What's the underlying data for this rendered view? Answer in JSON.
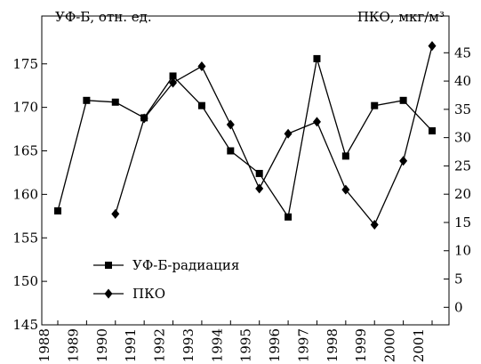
{
  "chart_data": {
    "type": "line",
    "y_label": "УФ-Б, отн. ед.",
    "y2_label": "ПКО, мкг/м³",
    "categories": [
      "1988",
      "1989",
      "1990",
      "1991",
      "1992",
      "1993",
      "1994",
      "1995",
      "1996",
      "1997",
      "1998",
      "1999",
      "2000",
      "2001"
    ],
    "series": [
      {
        "name": "УФ-Б-радиация",
        "color": "#000000",
        "marker": "square",
        "axis": "y",
        "values": [
          158.1,
          170.8,
          170.6,
          168.8,
          173.6,
          170.2,
          165,
          162.4,
          157.4,
          175.6,
          164.4,
          170.2,
          170.8,
          167.3
        ]
      },
      {
        "name": "ПКО",
        "color": "#000000",
        "marker": "diamond",
        "axis": "y2",
        "values": [
          null,
          null,
          16.5,
          33.4,
          39.7,
          42.6,
          32.3,
          21,
          30.7,
          32.8,
          20.8,
          14.6,
          25.9,
          46.2
        ]
      }
    ],
    "ylim": [
      145,
      180.5
    ],
    "yticks": [
      145,
      150,
      155,
      160,
      165,
      170,
      175
    ],
    "y2lim": [
      -3.1,
      51.5
    ],
    "y2ticks": [
      0,
      5,
      10,
      15,
      20,
      25,
      30,
      35,
      40,
      45
    ],
    "legend": "lower left"
  }
}
